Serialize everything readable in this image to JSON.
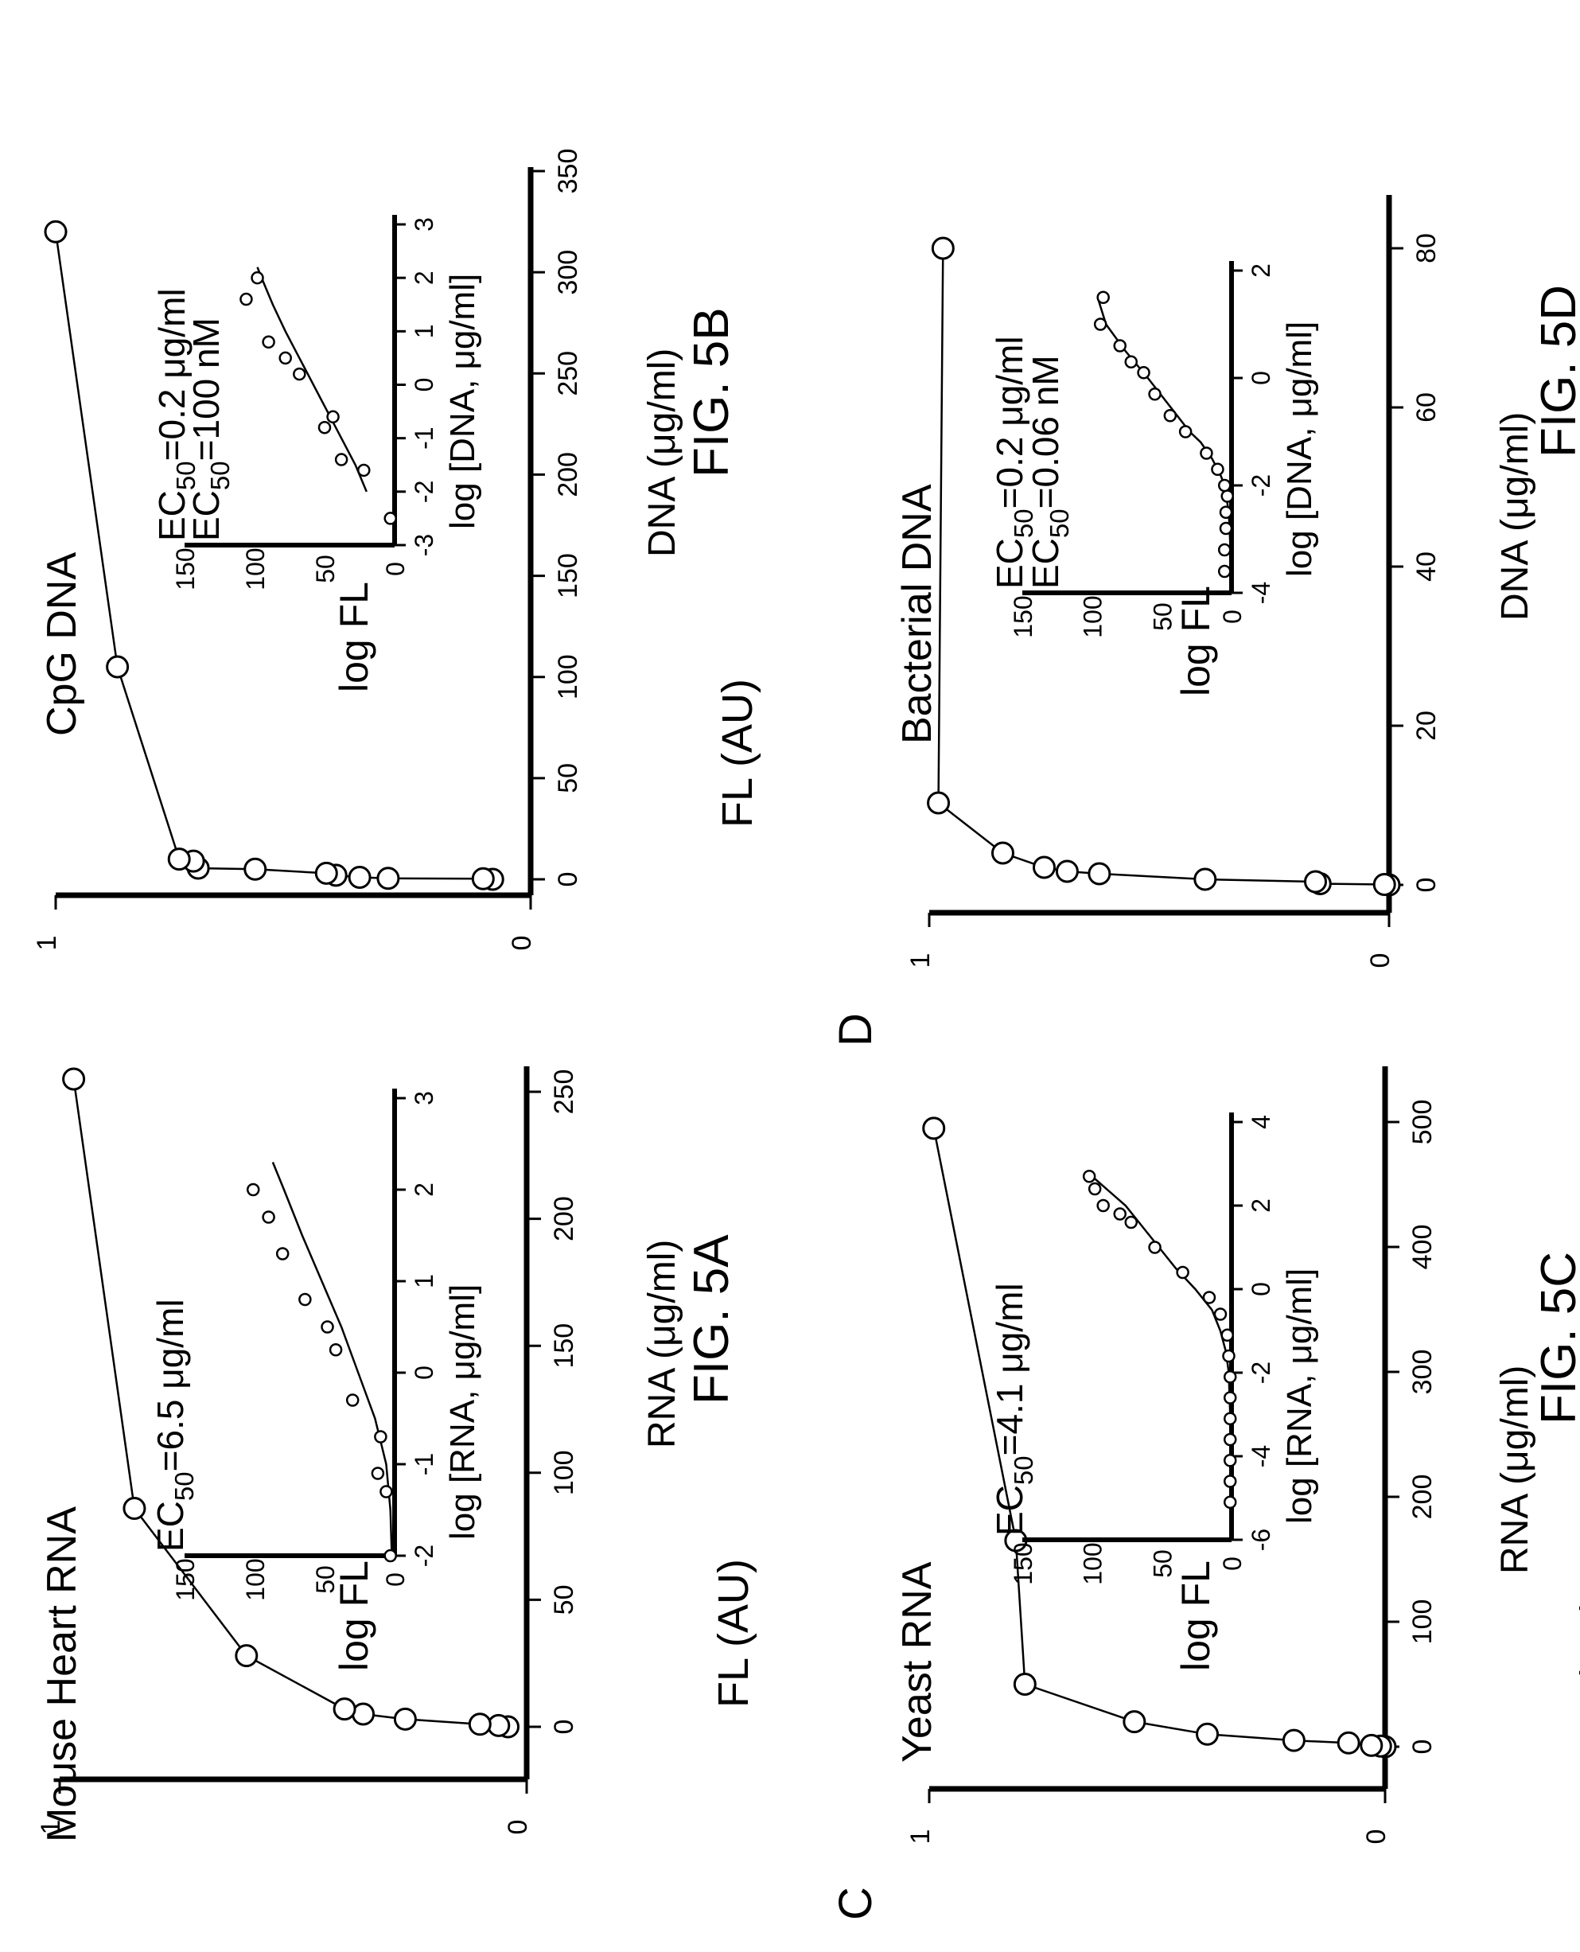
{
  "page": {
    "panel_letter_c": "C",
    "panel_letter_d": "D",
    "colors": {
      "ink": "#000000",
      "marker_fill": "#ffffff",
      "background": "#ffffff"
    }
  },
  "chart_data": [
    {
      "id": "5A",
      "type": "line",
      "figure_label": "FIG. 5A",
      "title": "Mouse Heart RNA",
      "xlabel": "RNA (μg/ml)",
      "ylabel": "FL (AU)",
      "xlim": [
        -5,
        270
      ],
      "ylim": [
        0,
        1
      ],
      "x_ticks": [
        0,
        50,
        100,
        150,
        200,
        250
      ],
      "y_ticks": [
        0,
        1
      ],
      "series": [
        {
          "x": [
            0,
            0.5,
            1,
            3,
            5,
            7,
            28,
            86,
            255
          ],
          "y": [
            0.04,
            0.06,
            0.1,
            0.26,
            0.35,
            0.39,
            0.6,
            0.84,
            0.97
          ]
        }
      ],
      "annotation": {
        "parts": [
          "EC",
          "50",
          "=6.5 μg/ml"
        ]
      },
      "inset": {
        "type": "scatter",
        "xlabel": "log [RNA, μg/ml]",
        "ylabel": "log FL",
        "xlim": [
          -2,
          3
        ],
        "ylim": [
          0,
          150
        ],
        "x_ticks": [
          -2,
          -1,
          0,
          1,
          2,
          3
        ],
        "y_ticks": [
          0,
          50,
          100,
          150
        ],
        "points": {
          "x": [
            -2.0,
            -1.3,
            -1.1,
            -0.7,
            -0.3,
            0.25,
            0.5,
            0.8,
            1.3,
            1.7,
            2.0
          ],
          "y": [
            3,
            6,
            12,
            10,
            30,
            42,
            48,
            64,
            80,
            90,
            101
          ]
        },
        "fit": {
          "x": [
            -2.0,
            -1.5,
            -1.0,
            -0.5,
            0,
            0.5,
            1,
            1.5,
            2,
            2.3
          ],
          "y": [
            2,
            3,
            6,
            14,
            26,
            38,
            52,
            66,
            79,
            87
          ]
        }
      }
    },
    {
      "id": "5B",
      "type": "line",
      "figure_label": "FIG. 5B",
      "title": "CpG DNA",
      "xlabel": "DNA (μg/ml)",
      "ylabel": "FL (AU)",
      "xlim": [
        -10,
        350
      ],
      "ylim": [
        0,
        1
      ],
      "x_ticks": [
        0,
        50,
        100,
        150,
        200,
        250,
        300,
        350
      ],
      "y_ticks": [
        0,
        1
      ],
      "series": [
        {
          "x": [
            0,
            0.3,
            0.5,
            1,
            2,
            3,
            5,
            5.5,
            9,
            10,
            105,
            320
          ],
          "y": [
            0.08,
            0.1,
            0.3,
            0.36,
            0.41,
            0.43,
            0.58,
            0.7,
            0.71,
            0.74,
            0.87,
            1.0
          ]
        }
      ],
      "annotation_lines": [
        {
          "parts": [
            "EC",
            "50",
            "=0.2 μg/ml"
          ]
        },
        {
          "parts": [
            "EC",
            "50",
            "=100 nM"
          ]
        }
      ],
      "inset": {
        "type": "scatter",
        "xlabel": "log [DNA, μg/ml]",
        "ylabel": "log FL",
        "xlim": [
          -3,
          3
        ],
        "ylim": [
          0,
          150
        ],
        "x_ticks": [
          -3,
          -2,
          -1,
          0,
          1,
          2,
          3
        ],
        "y_ticks": [
          0,
          50,
          100,
          150
        ],
        "points": {
          "x": [
            -2.5,
            -1.6,
            -1.4,
            -0.8,
            -0.6,
            0.2,
            0.5,
            0.8,
            1.6,
            2.0
          ],
          "y": [
            3,
            22,
            38,
            50,
            44,
            68,
            78,
            90,
            106,
            98
          ]
        },
        "fit": {
          "x": [
            -2.0,
            -1.5,
            -1.0,
            -0.5,
            0,
            0.5,
            1,
            1.5,
            2,
            2.2
          ],
          "y": [
            20,
            28,
            38,
            48,
            58,
            68,
            78,
            87,
            95,
            98
          ]
        }
      }
    },
    {
      "id": "5C",
      "type": "line",
      "figure_label": "FIG. 5C",
      "title": "Yeast RNA",
      "xlabel": "RNA (μg/ml)",
      "ylabel": "FL (AU)",
      "xlim": [
        -10,
        550
      ],
      "ylim": [
        0,
        1
      ],
      "x_ticks": [
        0,
        100,
        200,
        300,
        400,
        500
      ],
      "y_ticks": [
        0,
        1
      ],
      "series": [
        {
          "x": [
            0,
            0.5,
            1,
            3,
            5,
            10,
            20,
            50,
            165,
            495
          ],
          "y": [
            0.0,
            0.01,
            0.03,
            0.08,
            0.2,
            0.39,
            0.55,
            0.79,
            0.81,
            0.99
          ]
        }
      ],
      "annotation": {
        "parts": [
          "EC",
          "50",
          "=4.1 μg/ml"
        ]
      },
      "inset": {
        "type": "scatter",
        "xlabel": "log [RNA, μg/ml]",
        "ylabel": "log FL",
        "xlim": [
          -6,
          4
        ],
        "ylim": [
          0,
          150
        ],
        "x_ticks": [
          -6,
          -4,
          -2,
          0,
          2,
          4
        ],
        "y_ticks": [
          0,
          50,
          100,
          150
        ],
        "points": {
          "x": [
            -5.1,
            -4.6,
            -4.1,
            -3.6,
            -3.1,
            -2.6,
            -2.1,
            -1.6,
            -1.1,
            -0.6,
            -0.2,
            0.4,
            1.0,
            1.6,
            1.8,
            2.0,
            2.4,
            2.7
          ],
          "y": [
            1,
            1,
            1,
            1,
            1,
            1,
            1,
            2,
            3,
            8,
            16,
            35,
            55,
            72,
            80,
            92,
            98,
            102
          ]
        },
        "fit": {
          "x": [
            -5.1,
            -3.0,
            -2.0,
            -1.5,
            -1.0,
            -0.5,
            0,
            0.5,
            1.0,
            1.5,
            2.0,
            2.7
          ],
          "y": [
            0,
            1,
            2,
            4,
            8,
            14,
            26,
            40,
            52,
            64,
            76,
            100
          ]
        }
      }
    },
    {
      "id": "5D",
      "type": "line",
      "figure_label": "FIG. 5D",
      "title": "Bacterial DNA",
      "xlabel": "DNA (μg/ml)",
      "ylabel": "FL (AU)",
      "xlim": [
        -2,
        88
      ],
      "ylim": [
        0,
        1
      ],
      "x_ticks": [
        0,
        20,
        40,
        60,
        80
      ],
      "y_ticks": [
        0,
        1
      ],
      "series": [
        {
          "x": [
            0,
            0.05,
            0.15,
            0.4,
            0.7,
            1.4,
            1.7,
            2.2,
            4,
            10.3,
            80
          ],
          "y": [
            0.0,
            0.01,
            0.15,
            0.16,
            0.4,
            0.63,
            0.7,
            0.75,
            0.84,
            0.98,
            0.97
          ]
        }
      ],
      "annotation_lines": [
        {
          "parts": [
            "EC",
            "50",
            "=0.2 μg/ml"
          ]
        },
        {
          "parts": [
            "EC",
            "50",
            "=0.06 nM"
          ]
        }
      ],
      "inset": {
        "type": "scatter",
        "xlabel": "log [DNA, μg/ml]",
        "ylabel": "log FL",
        "xlim": [
          -4,
          2
        ],
        "ylim": [
          0,
          150
        ],
        "x_ticks": [
          -4,
          -2,
          0,
          2
        ],
        "y_ticks": [
          0,
          50,
          100,
          150
        ],
        "points": {
          "x": [
            -3.6,
            -3.2,
            -2.8,
            -2.5,
            -2.2,
            -2.0,
            -1.7,
            -1.4,
            -1.0,
            -0.7,
            -0.3,
            0.1,
            0.3,
            0.6,
            1.0,
            1.5
          ],
          "y": [
            5,
            5,
            4,
            4,
            3,
            5,
            10,
            18,
            33,
            44,
            55,
            63,
            72,
            80,
            94,
            92
          ]
        },
        "fit": {
          "x": [
            -3.6,
            -2.5,
            -2.0,
            -1.8,
            -1.5,
            -1.2,
            -1.0,
            -0.5,
            0,
            0.5,
            1.0,
            1.5
          ],
          "y": [
            0,
            2,
            5,
            8,
            14,
            22,
            30,
            45,
            60,
            76,
            90,
            96
          ]
        }
      }
    }
  ]
}
